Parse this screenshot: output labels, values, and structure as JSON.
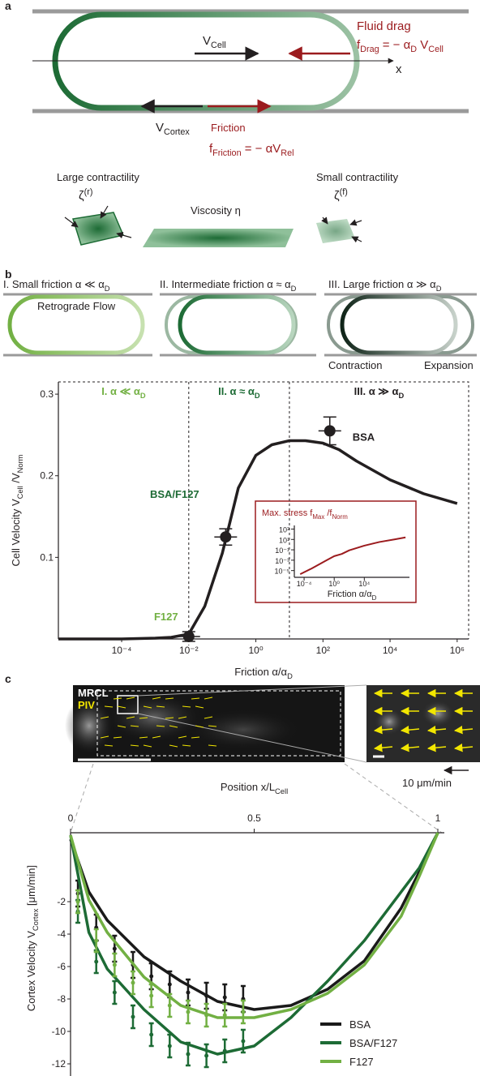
{
  "panel_labels": [
    "a",
    "b",
    "c"
  ],
  "panel_a": {
    "v_cell": [
      "V",
      "Cell"
    ],
    "x_axis": "x",
    "fluid_drag": "Fluid drag",
    "f_drag": [
      "f",
      "Drag",
      "  = − α",
      "D",
      " V",
      "Cell"
    ],
    "v_cortex": [
      "V",
      "Cortex"
    ],
    "friction": "Friction",
    "f_friction": [
      "f",
      "Friction",
      "  = − αV",
      "Rel"
    ],
    "large_contractility": "Large contractility",
    "small_contractility": "Small contractility",
    "zeta_r": [
      "ζ",
      "(r)"
    ],
    "zeta_f": [
      "ζ",
      "(f)"
    ],
    "viscosity": "Viscosity  η"
  },
  "panel_b": {
    "regime_1": [
      "I. Small friction  α ≪ α",
      "D"
    ],
    "retrograde_flow": "Retrograde Flow",
    "regime_2": [
      "II. Intermediate friction α ≈ α",
      "D"
    ],
    "regime_3": [
      "III. Large friction  α ≫ α",
      "D"
    ],
    "contraction": "Contraction",
    "expansion": "Expansion"
  },
  "panel_c": {
    "mrcl": "MRCL",
    "piv": "PIV",
    "scale": "10 μm/min"
  },
  "chart_data": [
    {
      "type": "line",
      "x_label": [
        "Friction    α/α",
        "D"
      ],
      "y_label": [
        "Cell Velocity  V",
        "Cell",
        " /V",
        "Norm"
      ],
      "x_scale": "log",
      "xlim": [
        1.3e-06,
        2200000
      ],
      "ylim": [
        0,
        0.315
      ],
      "xticks": [
        {
          "value": 0.0001,
          "label": "10⁻⁴"
        },
        {
          "value": 0.01,
          "label": "10⁻²"
        },
        {
          "value": 1,
          "label": "10⁰"
        },
        {
          "value": 100,
          "label": "10²"
        },
        {
          "value": 10000,
          "label": "10⁴"
        },
        {
          "value": 1000000,
          "label": "10⁶"
        }
      ],
      "yticks": [
        0.1,
        0.2,
        0.3
      ],
      "region_labels": [
        [
          "I. α ≪ α",
          "D"
        ],
        [
          "II. α ≈ α",
          "D"
        ],
        [
          "III. α ≫ α",
          "D"
        ]
      ],
      "region_colors": [
        "#72b043",
        "#1d6b35",
        "#231f20"
      ],
      "region_bounds": [
        0.01,
        10
      ],
      "series": [
        {
          "color": "#231f20",
          "x": [
            1.3e-06,
            0.0001,
            0.001,
            0.003,
            0.01,
            0.03,
            0.1,
            0.3,
            1,
            3,
            10,
            30,
            100,
            300,
            1000,
            10000,
            100000,
            1000000
          ],
          "values": [
            0,
            0,
            0.001,
            0.002,
            0.006,
            0.04,
            0.105,
            0.185,
            0.225,
            0.238,
            0.243,
            0.243,
            0.24,
            0.232,
            0.218,
            0.195,
            0.178,
            0.166
          ]
        }
      ],
      "points": {
        "labels": [
          "F127",
          "BSA/F127",
          "BSA"
        ],
        "label_colors": [
          "#72b043",
          "#1d6b35",
          "#231f20"
        ],
        "x": [
          0.01,
          0.126,
          160
        ],
        "values": [
          0.003,
          0.125,
          0.255
        ],
        "errors": [
          0.006,
          0.01,
          0.017
        ]
      }
    },
    {
      "type": "line",
      "title": [
        "Max. stress  f",
        "Max",
        " /f",
        "Norm"
      ],
      "x_label": [
        "Friction   α/α",
        "D"
      ],
      "x_scale": "log",
      "y_scale": "log",
      "xlim": [
        5e-06,
        10000000000
      ],
      "ylim": [
        5e-07,
        5000
      ],
      "xticks": [
        {
          "value": 0.0001,
          "label": "10⁻⁴"
        },
        {
          "value": 1,
          "label": "10⁰"
        },
        {
          "value": 10000,
          "label": "10⁴"
        }
      ],
      "yticks": [
        {
          "value": 1e-05,
          "label": "10⁻⁵"
        },
        {
          "value": 0.001,
          "label": "10⁻³"
        },
        {
          "value": 0.1,
          "label": "10⁻¹"
        },
        {
          "value": 10,
          "label": "10¹"
        },
        {
          "value": 1000,
          "label": "10³"
        }
      ],
      "color": "#9b1b1e",
      "series": [
        {
          "color": "#9b1b1e",
          "x": [
            3e-05,
            0.001,
            0.1,
            1,
            10,
            100,
            10000,
            1000000,
            100000000,
            3000000000
          ],
          "values": [
            2e-06,
            2.5e-05,
            0.001,
            0.006,
            0.016,
            0.08,
            0.63,
            3.2,
            10,
            25
          ]
        }
      ]
    },
    {
      "type": "line",
      "x_label": [
        "Position  x/L",
        "Cell"
      ],
      "y_label": [
        "Cortex Velocity  V",
        "Cortex",
        " [μm/min]"
      ],
      "xlim": [
        0,
        1
      ],
      "ylim": [
        -12.75,
        2.25
      ],
      "xticks": [
        0,
        0.5,
        1
      ],
      "yticks": [
        -12,
        -10,
        -8,
        -6,
        -4,
        -2
      ],
      "legend": "lower right",
      "series": [
        {
          "name": "BSA",
          "color": "#1a1a1a",
          "x": [
            0,
            0.05,
            0.1,
            0.2,
            0.3,
            0.4,
            0.5,
            0.6,
            0.7,
            0.8,
            0.9,
            0.95,
            1
          ],
          "values": [
            1.85,
            -1.4,
            -3.15,
            -5.4,
            -6.9,
            -8.15,
            -8.65,
            -8.4,
            -7.4,
            -5.65,
            -2.4,
            -0.15,
            2.25
          ],
          "points_x": [
            0.02,
            0.07,
            0.12,
            0.17,
            0.22,
            0.27,
            0.32,
            0.37,
            0.42,
            0.47
          ],
          "points_values": [
            -1.5,
            -3.6,
            -4.9,
            -5.9,
            -6.6,
            -7.1,
            -7.6,
            -7.8,
            -7.9,
            -8.0
          ],
          "points_errors": [
            0.8,
            0.8,
            0.8,
            0.8,
            0.8,
            0.8,
            0.8,
            0.8,
            0.8,
            0.8
          ]
        },
        {
          "name": "BSA/F127",
          "color": "#1d6b35",
          "x": [
            0,
            0.05,
            0.1,
            0.2,
            0.3,
            0.4,
            0.5,
            0.6,
            0.7,
            0.8,
            0.9,
            0.95,
            1
          ],
          "values": [
            2.1,
            -3.9,
            -6.15,
            -8.65,
            -10.65,
            -11.4,
            -10.9,
            -9.15,
            -6.9,
            -4.4,
            -1.4,
            0.1,
            2.25
          ],
          "points_x": [
            0.02,
            0.07,
            0.12,
            0.17,
            0.22,
            0.27,
            0.32,
            0.37,
            0.42,
            0.47
          ],
          "points_values": [
            -2.6,
            -5.7,
            -7.6,
            -9.1,
            -10.2,
            -10.9,
            -11.4,
            -11.5,
            -11.2,
            -10.6
          ],
          "points_errors": [
            0.7,
            0.7,
            0.7,
            0.7,
            0.7,
            0.7,
            0.7,
            0.7,
            0.7,
            0.7
          ]
        },
        {
          "name": "F127",
          "color": "#72b043",
          "x": [
            0,
            0.05,
            0.1,
            0.2,
            0.3,
            0.4,
            0.5,
            0.6,
            0.7,
            0.8,
            0.9,
            0.95,
            1
          ],
          "values": [
            2.1,
            -1.9,
            -3.9,
            -6.65,
            -8.4,
            -9.15,
            -9.15,
            -8.65,
            -7.65,
            -5.9,
            -2.9,
            -0.4,
            2.25
          ],
          "points_x": [
            0.02,
            0.07,
            0.12,
            0.17,
            0.22,
            0.27,
            0.32,
            0.37,
            0.42,
            0.47
          ],
          "points_values": [
            -2.0,
            -4.4,
            -5.9,
            -7.0,
            -7.8,
            -8.4,
            -8.8,
            -9.0,
            -9.0,
            -8.8
          ],
          "points_errors": [
            0.7,
            0.7,
            0.7,
            0.7,
            0.7,
            0.7,
            0.7,
            0.7,
            0.7,
            0.7
          ]
        }
      ]
    }
  ]
}
